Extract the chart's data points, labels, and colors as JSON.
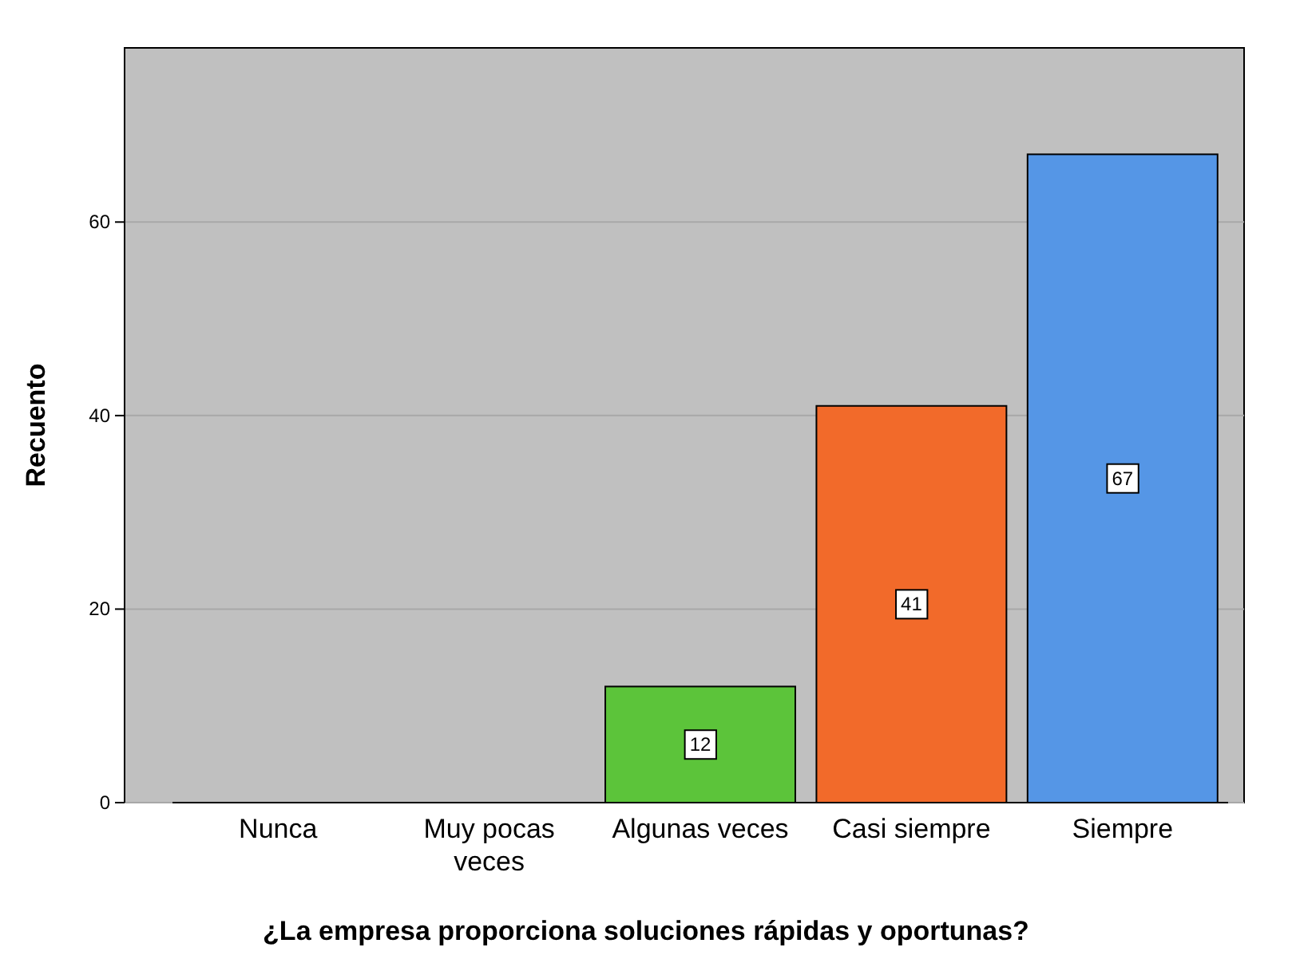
{
  "chart_data": {
    "type": "bar",
    "xlabel": "¿La empresa proporciona soluciones rápidas y oportunas?",
    "ylabel": "Recuento",
    "categories": [
      "Nunca",
      "Muy pocas veces",
      "Algunas veces",
      "Casi siempre",
      "Siempre"
    ],
    "values": [
      0,
      0,
      12,
      41,
      67
    ],
    "colors": [
      "#5cc43a",
      "#5cc43a",
      "#5cc43a",
      "#f26a2a",
      "#5596e6"
    ],
    "value_labels": [
      null,
      null,
      "12",
      "41",
      "67"
    ],
    "ylim": [
      0,
      78
    ],
    "yticks": [
      0,
      20,
      40,
      60
    ],
    "grid": "y"
  }
}
